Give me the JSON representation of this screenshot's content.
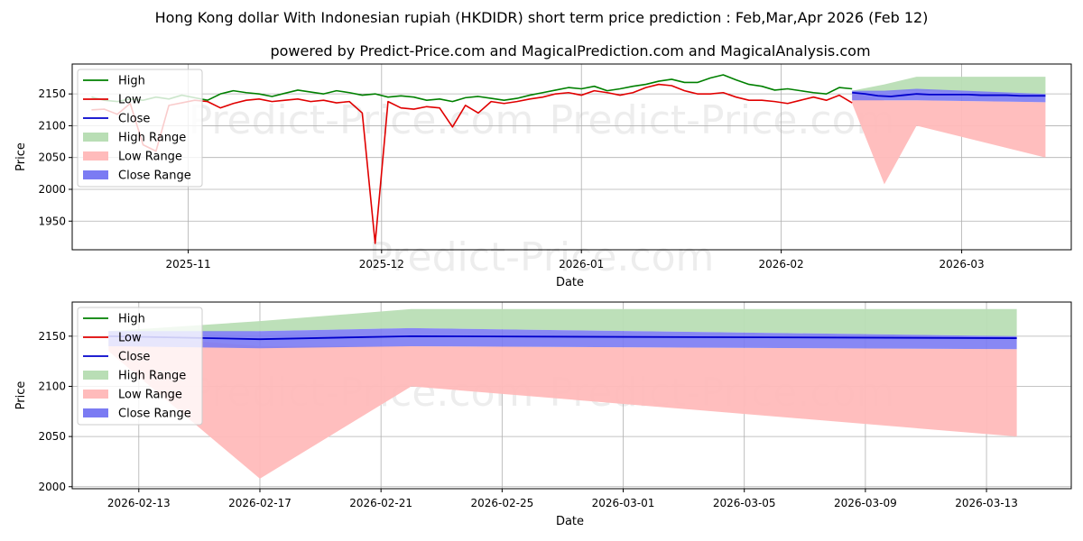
{
  "title_line1": "Hong Kong dollar With Indonesian rupiah (HKDIDR) short term price prediction : Feb,Mar,Apr 2026 (Feb 12)",
  "title_line2": "powered by Predict-Price.com and MagicalPrediction.com and MagicalAnalysis.com",
  "watermark": "Predict-Price.com",
  "colors": {
    "high": "#008000",
    "low": "#e00000",
    "close": "#0000cc",
    "high_range": "#b9deb5",
    "low_range": "#ffbbbb",
    "close_range": "#7b7bf3"
  },
  "legend": [
    "High",
    "Low",
    "Close",
    "High Range",
    "Low Range",
    "Close Range"
  ],
  "chart_data": [
    {
      "type": "line",
      "name": "history",
      "xlabel": "Date",
      "ylabel": "Price",
      "xlim_days": [
        -90,
        65
      ],
      "ylim": [
        1905,
        2197
      ],
      "yticks": [
        1950,
        2000,
        2050,
        2100,
        2150
      ],
      "xticks": [
        {
          "label": "2025-11",
          "day": -72
        },
        {
          "label": "2025-12",
          "day": -42
        },
        {
          "label": "2026-01",
          "day": -11
        },
        {
          "label": "2026-02",
          "day": 20
        },
        {
          "label": "2026-03",
          "day": 48
        }
      ],
      "grid": true,
      "legend_position": "top-left",
      "series": [
        {
          "name": "High",
          "x_days": [
            -87,
            -85,
            -83,
            -81,
            -79,
            -77,
            -75,
            -73,
            -71,
            -69,
            -67,
            -65,
            -63,
            -61,
            -59,
            -57,
            -55,
            -53,
            -51,
            -49,
            -47,
            -45,
            -43,
            -41,
            -39,
            -37,
            -35,
            -33,
            -31,
            -29,
            -27,
            -25,
            -23,
            -21,
            -19,
            -17,
            -15,
            -13,
            -11,
            -9,
            -7,
            -5,
            -3,
            -1,
            1,
            3,
            5,
            7,
            9,
            11,
            13,
            15,
            17,
            19,
            21,
            23,
            25,
            27,
            29,
            31
          ],
          "values": [
            2145,
            2140,
            2138,
            2142,
            2140,
            2145,
            2142,
            2148,
            2144,
            2140,
            2150,
            2155,
            2152,
            2150,
            2146,
            2151,
            2156,
            2153,
            2150,
            2155,
            2152,
            2148,
            2150,
            2145,
            2147,
            2145,
            2140,
            2142,
            2138,
            2144,
            2146,
            2143,
            2140,
            2143,
            2148,
            2152,
            2156,
            2160,
            2158,
            2162,
            2155,
            2158,
            2162,
            2165,
            2170,
            2173,
            2168,
            2168,
            2175,
            2180,
            2172,
            2165,
            2162,
            2156,
            2158,
            2155,
            2152,
            2150,
            2160,
            2158
          ]
        },
        {
          "name": "Low",
          "x_days": [
            -87,
            -85,
            -83,
            -81,
            -79,
            -77,
            -75,
            -73,
            -71,
            -69,
            -67,
            -65,
            -63,
            -61,
            -59,
            -57,
            -55,
            -53,
            -51,
            -49,
            -47,
            -45,
            -43,
            -41,
            -39,
            -37,
            -35,
            -33,
            -31,
            -29,
            -27,
            -25,
            -23,
            -21,
            -19,
            -17,
            -15,
            -13,
            -11,
            -9,
            -7,
            -5,
            -3,
            -1,
            1,
            3,
            5,
            7,
            9,
            11,
            13,
            15,
            17,
            19,
            21,
            23,
            25,
            27,
            29,
            31
          ],
          "values": [
            2125,
            2126,
            2118,
            2135,
            2070,
            2060,
            2132,
            2136,
            2140,
            2138,
            2128,
            2135,
            2140,
            2142,
            2138,
            2140,
            2142,
            2138,
            2140,
            2136,
            2138,
            2120,
            1915,
            2138,
            2128,
            2126,
            2130,
            2128,
            2098,
            2132,
            2120,
            2138,
            2135,
            2138,
            2142,
            2145,
            2150,
            2152,
            2148,
            2155,
            2152,
            2148,
            2152,
            2160,
            2165,
            2163,
            2155,
            2150,
            2150,
            2152,
            2145,
            2140,
            2140,
            2138,
            2135,
            2140,
            2145,
            2140,
            2148,
            2136
          ]
        },
        {
          "name": "Close",
          "x_days": [
            31,
            33,
            35,
            37,
            39,
            41,
            43,
            45,
            47,
            49,
            51,
            53,
            55,
            57,
            59,
            61
          ],
          "values": [
            2152,
            2150,
            2147,
            2146,
            2148,
            2150,
            2149,
            2149,
            2149,
            2149,
            2148,
            2148,
            2148,
            2147,
            2147,
            2147
          ]
        }
      ],
      "ranges": [
        {
          "name": "High Range",
          "x_days": [
            31,
            36,
            41,
            61
          ],
          "lower": [
            2152,
            2153,
            2155,
            2148
          ],
          "upper": [
            2155,
            2165,
            2177,
            2177
          ]
        },
        {
          "name": "Low Range",
          "x_days": [
            31,
            36,
            41,
            61
          ],
          "lower": [
            2135,
            2008,
            2100,
            2050
          ],
          "upper": [
            2152,
            2140,
            2140,
            2137
          ]
        },
        {
          "name": "Close Range",
          "x_days": [
            31,
            36,
            41,
            61
          ],
          "lower": [
            2140,
            2140,
            2140,
            2137
          ],
          "upper": [
            2155,
            2155,
            2158,
            2150
          ]
        }
      ]
    },
    {
      "type": "line",
      "name": "forecast",
      "xlabel": "Date",
      "ylabel": "Price",
      "xlim_days": [
        -1.2,
        31.8
      ],
      "ylim": [
        1998,
        2184
      ],
      "yticks": [
        2000,
        2050,
        2100,
        2150
      ],
      "xticks": [
        {
          "label": "2026-02-13",
          "day": 1
        },
        {
          "label": "2026-02-17",
          "day": 5
        },
        {
          "label": "2026-02-21",
          "day": 9
        },
        {
          "label": "2026-02-25",
          "day": 13
        },
        {
          "label": "2026-03-01",
          "day": 17
        },
        {
          "label": "2026-03-05",
          "day": 21
        },
        {
          "label": "2026-03-09",
          "day": 25
        },
        {
          "label": "2026-03-13",
          "day": 29
        }
      ],
      "grid": true,
      "legend_position": "top-left",
      "series": [
        {
          "name": "Close",
          "x_days": [
            0,
            5,
            10,
            30
          ],
          "values": [
            2150,
            2147,
            2150,
            2148
          ]
        }
      ],
      "ranges": [
        {
          "name": "High Range",
          "x_days": [
            0,
            5,
            10,
            30
          ],
          "lower": [
            2152,
            2155,
            2158,
            2150
          ],
          "upper": [
            2155,
            2165,
            2177,
            2177
          ]
        },
        {
          "name": "Low Range",
          "x_days": [
            0,
            5,
            10,
            30
          ],
          "lower": [
            2135,
            2008,
            2100,
            2050
          ],
          "upper": [
            2152,
            2140,
            2140,
            2137
          ]
        },
        {
          "name": "Close Range",
          "x_days": [
            0,
            5,
            10,
            30
          ],
          "lower": [
            2140,
            2138,
            2140,
            2137
          ],
          "upper": [
            2155,
            2155,
            2158,
            2150
          ]
        }
      ]
    }
  ]
}
